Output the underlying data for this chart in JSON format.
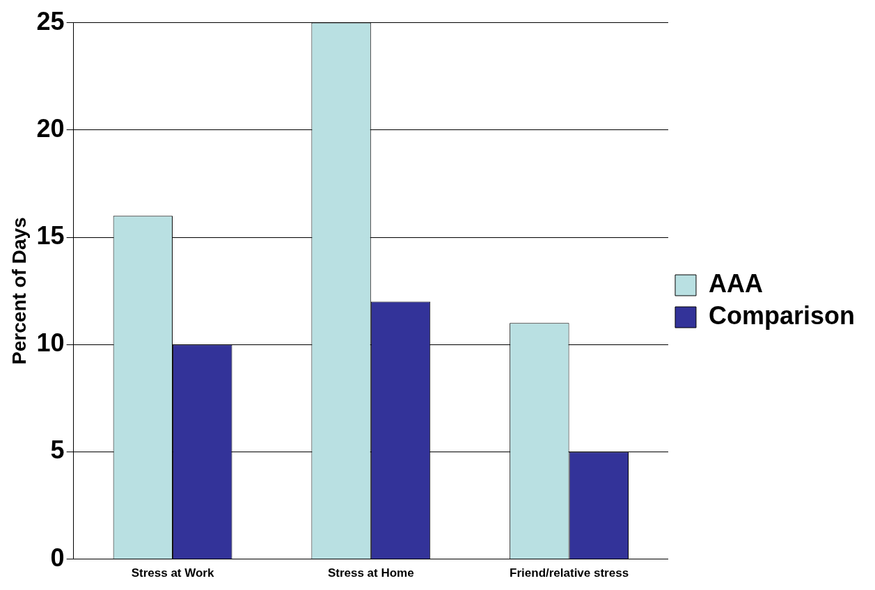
{
  "chart_data": {
    "type": "bar",
    "ylabel": "Percent of Days",
    "categories": [
      "Stress at Work",
      "Stress at Home",
      "Friend/relative stress"
    ],
    "series": [
      {
        "name": "AAA",
        "color": "#b9e0e2",
        "values": [
          16,
          25,
          11
        ]
      },
      {
        "name": "Comparison",
        "color": "#333399",
        "values": [
          10,
          12,
          5
        ]
      }
    ],
    "ylim": [
      0,
      25
    ],
    "yticks": [
      0,
      5,
      10,
      15,
      20,
      25
    ],
    "grid": "y",
    "legend": "right"
  }
}
